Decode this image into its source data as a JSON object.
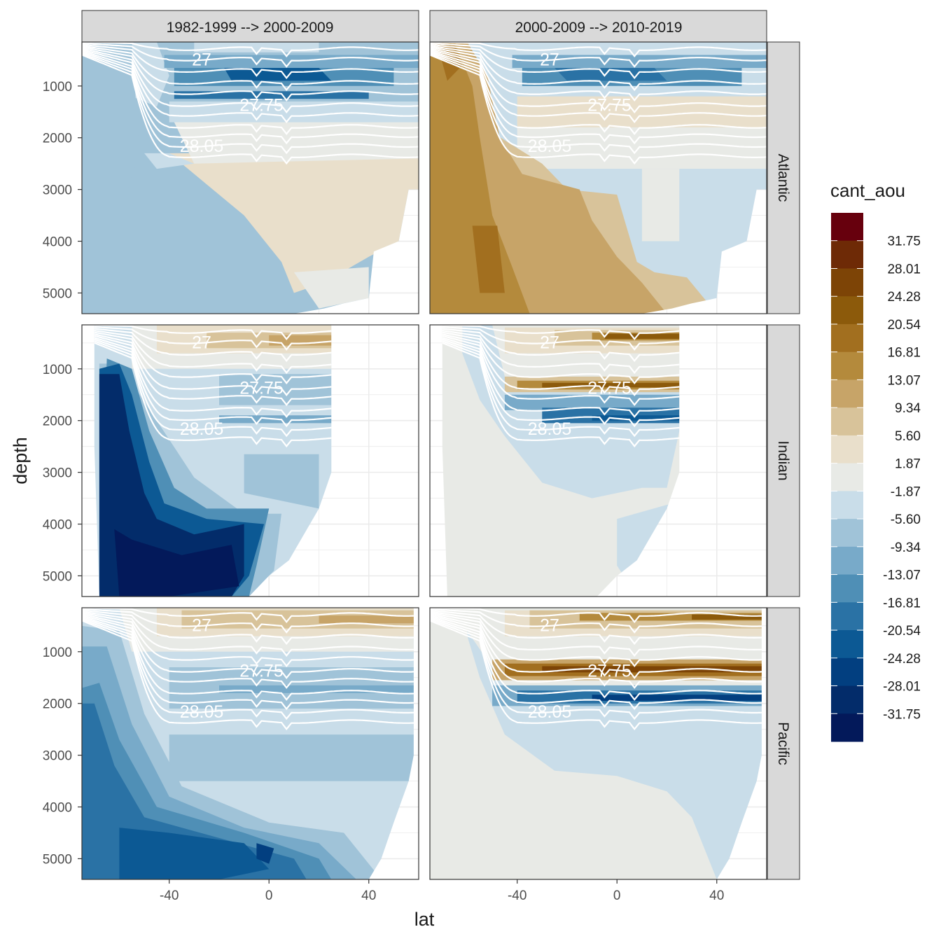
{
  "chart_data": {
    "type": "heatmap",
    "subtype": "faceted filled-contour sections with density isolines",
    "xlabel": "lat",
    "ylabel": "depth",
    "x_ticks": [
      -40,
      0,
      40
    ],
    "y_ticks": [
      1000,
      2000,
      3000,
      4000,
      5000
    ],
    "xlim": [
      -75,
      60
    ],
    "ylim": [
      5400,
      150
    ],
    "columns": [
      "1982-1999 --> 2000-2009",
      "2000-2009 --> 2010-2019"
    ],
    "rows": [
      "Atlantic",
      "Indian",
      "Pacific"
    ],
    "legend": {
      "title": "cant_aou",
      "breaks": [
        31.75,
        28.01,
        24.28,
        20.54,
        16.81,
        13.07,
        9.34,
        5.6,
        1.87,
        -1.87,
        -5.6,
        -9.34,
        -13.07,
        -16.81,
        -20.54,
        -24.28,
        -28.01,
        -31.75
      ],
      "break_labels": [
        "31.75",
        "28.01",
        "24.28",
        "20.54",
        "16.81",
        "13.07",
        "9.34",
        "5.60",
        "1.87",
        "-1.87",
        "-5.60",
        "-9.34",
        "-13.07",
        "-16.81",
        "-20.54",
        "-24.28",
        "-28.01",
        "-31.75"
      ],
      "colors_top_to_bottom": [
        "#67000d",
        "#6e2a06",
        "#7d4406",
        "#8c5a0b",
        "#a26f1f",
        "#b48a3c",
        "#c7a468",
        "#d8c39a",
        "#e9dfcb",
        "#e8eae6",
        "#c9dde9",
        "#a0c3d8",
        "#78aac9",
        "#4f8fb6",
        "#2a72a5",
        "#0c5994",
        "#023f80",
        "#032c6a",
        "#03195a"
      ],
      "position": "right"
    },
    "isolines": {
      "values_labelled": [
        "27",
        "27.75",
        "28.05"
      ],
      "color": "#ffffff",
      "depths_approx": [
        280,
        480,
        700,
        930,
        1130,
        1360,
        1550,
        1780,
        1960,
        2150,
        2350
      ]
    },
    "panels": [
      {
        "row": "Atlantic",
        "column": "1982-1999 --> 2000-2009",
        "surface": "mixed, -13 to -24 at ~800 m",
        "intermediate": "-1.87 to 1.87",
        "deep_south": "-5.60 to -9.34",
        "deep_north": "1.87 to 5.60"
      },
      {
        "row": "Atlantic",
        "column": "2000-2009 --> 2010-2019",
        "surface": "-13 to -20 at ~800 m",
        "deep_south": "9.34 to 16.81",
        "deep_north": "-1.87 to -5.60"
      },
      {
        "row": "Indian",
        "column": "1982-1999 --> 2000-2009",
        "surface": "5.60 to 13.07",
        "deep_south": "-24.28 to -31.75",
        "deep_north": "-5.60 to -13.07"
      },
      {
        "row": "Indian",
        "column": "2000-2009 --> 2010-2019",
        "surface": "13.07 to 20.54",
        "band_1300m": "13.07 to 20.54",
        "band_1800m": "-16.81 to -20.54",
        "deep": "-1.87 to 1.87"
      },
      {
        "row": "Pacific",
        "column": "1982-1999 --> 2000-2009",
        "surface": "5.60 to 13.07",
        "deep_south": "-16.81 to -24.28",
        "deep_north": "-5.60 to -9.34"
      },
      {
        "row": "Pacific",
        "column": "2000-2009 --> 2010-2019",
        "surface": "13.07 to 20.54",
        "band_1300m": "16.81 to 24.28",
        "band_1900m": "-16.81 to -24.28",
        "deep": "-1.87 to 1.87"
      }
    ]
  }
}
